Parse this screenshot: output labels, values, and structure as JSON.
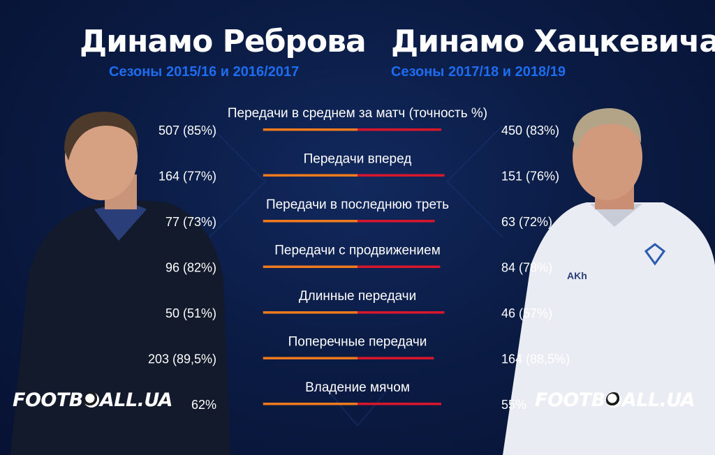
{
  "header": {
    "left_title": "Динамо Реброва",
    "left_subtitle": "Сезоны 2015/16  и 2016/2017",
    "right_title": "Динамо Хацкевича",
    "right_subtitle": "Сезоны 2017/18 и 2018/19"
  },
  "logo": {
    "prefix": "FOOTB",
    "suffix": "ALL.UA"
  },
  "colors": {
    "left_bar": "#f07a1e",
    "right_bar": "#d8172d",
    "subtitle": "#1e6cf0",
    "background": "#0b1c45"
  },
  "chart_data": {
    "type": "bar",
    "orientation": "diverging",
    "series": [
      {
        "name": "Динамо Реброва",
        "values": [
          507,
          164,
          77,
          96,
          50,
          203,
          62
        ]
      },
      {
        "name": "Динамо Хацкевича",
        "values": [
          450,
          151,
          63,
          84,
          46,
          164,
          55
        ]
      }
    ],
    "categories": [
      "Передачи в среднем за матч (точность %)",
      "Передачи вперед",
      "Передачи в последнюю треть",
      "Передачи с продвижением",
      "Длинные передачи",
      "Поперечные передачи",
      "Владение мячом"
    ],
    "left_labels": [
      "507 (85%)",
      "164 (77%)",
      "77 (73%)",
      "96 (82%)",
      "50 (51%)",
      "203 (89,5%)",
      "62%"
    ],
    "right_labels": [
      "450 (83%)",
      "151 (76%)",
      "63 (72%)",
      "84 (78%)",
      "46 (57%)",
      "164 (88,5%)",
      "55%"
    ]
  }
}
